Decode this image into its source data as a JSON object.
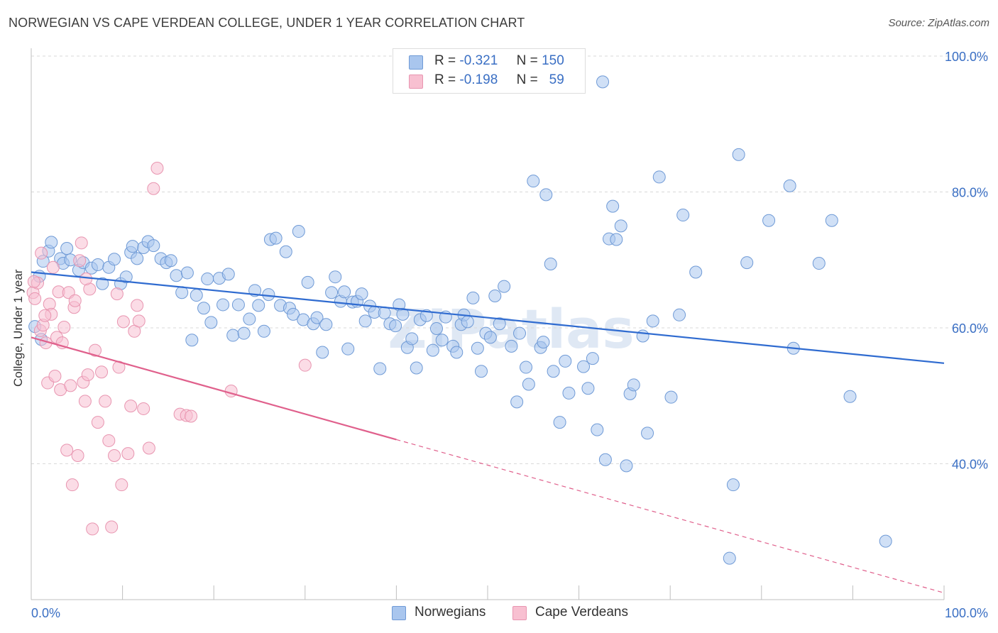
{
  "title": "NORWEGIAN VS CAPE VERDEAN COLLEGE, UNDER 1 YEAR CORRELATION CHART",
  "source": "Source: ZipAtlas.com",
  "watermark": "ZIPatlas",
  "legend": {
    "rows": [
      {
        "r_label": "R =",
        "r_value": "-0.321",
        "n_label": "N =",
        "n_value": "150",
        "color": "#a9c6ee",
        "border": "#6f9ad6"
      },
      {
        "r_label": "R =",
        "r_value": "-0.198",
        "n_label": "N =",
        "n_value": "59",
        "color": "#f8c0d1",
        "border": "#e895b0"
      }
    ]
  },
  "bottom_legend": [
    {
      "label": "Norwegians",
      "color": "#a9c6ee",
      "border": "#6f9ad6"
    },
    {
      "label": "Cape Verdeans",
      "color": "#f8c0d1",
      "border": "#e895b0"
    }
  ],
  "chart_data": {
    "type": "scatter",
    "xlabel": "",
    "ylabel": "College, Under 1 year",
    "xlim": [
      0,
      100
    ],
    "ylim": [
      20,
      100
    ],
    "x_tick_labels": [
      "0.0%",
      "100.0%"
    ],
    "y_tick_labels": [
      "40.0%",
      "60.0%",
      "80.0%",
      "100.0%"
    ],
    "y_ticks": [
      40,
      60,
      80,
      100
    ],
    "grid": "horizontal-dashed",
    "legend_placement": "top-center",
    "series": [
      {
        "name": "Norwegians",
        "color": "#6f9ad6",
        "fill": "#a9c6ee",
        "trend_color": "#2f6bd0",
        "trend": {
          "x0": 0,
          "y0": 68.2,
          "x1": 100,
          "y1": 54.8,
          "dashed_from": 100
        },
        "points": [
          [
            0.4,
            60.2
          ],
          [
            0.9,
            67.6
          ],
          [
            1.1,
            58.3
          ],
          [
            1.3,
            69.8
          ],
          [
            1.9,
            71.3
          ],
          [
            2.2,
            72.6
          ],
          [
            3.2,
            70.2
          ],
          [
            3.5,
            69.5
          ],
          [
            3.9,
            71.7
          ],
          [
            4.3,
            70.0
          ],
          [
            5.2,
            68.5
          ],
          [
            5.7,
            69.6
          ],
          [
            6.6,
            68.8
          ],
          [
            7.3,
            69.3
          ],
          [
            7.8,
            66.5
          ],
          [
            8.5,
            68.9
          ],
          [
            9.1,
            70.1
          ],
          [
            9.8,
            66.5
          ],
          [
            10.4,
            67.5
          ],
          [
            10.9,
            71.1
          ],
          [
            11.1,
            72.0
          ],
          [
            11.6,
            70.2
          ],
          [
            12.3,
            71.8
          ],
          [
            12.8,
            72.7
          ],
          [
            13.4,
            72.1
          ],
          [
            14.2,
            70.2
          ],
          [
            14.8,
            69.6
          ],
          [
            15.3,
            69.9
          ],
          [
            15.9,
            67.7
          ],
          [
            16.5,
            65.2
          ],
          [
            17.1,
            68.1
          ],
          [
            17.6,
            58.2
          ],
          [
            18.1,
            64.8
          ],
          [
            18.9,
            62.9
          ],
          [
            19.3,
            67.2
          ],
          [
            19.7,
            60.8
          ],
          [
            20.6,
            67.3
          ],
          [
            21.0,
            63.4
          ],
          [
            21.6,
            67.9
          ],
          [
            22.1,
            58.9
          ],
          [
            22.7,
            63.4
          ],
          [
            23.3,
            59.2
          ],
          [
            23.9,
            61.3
          ],
          [
            24.5,
            65.5
          ],
          [
            24.9,
            63.3
          ],
          [
            25.5,
            59.5
          ],
          [
            26.0,
            64.9
          ],
          [
            26.2,
            73.0
          ],
          [
            26.8,
            73.2
          ],
          [
            27.3,
            63.3
          ],
          [
            27.9,
            71.2
          ],
          [
            28.3,
            62.9
          ],
          [
            28.7,
            62.0
          ],
          [
            29.3,
            74.2
          ],
          [
            29.8,
            61.2
          ],
          [
            30.3,
            66.7
          ],
          [
            30.9,
            60.6
          ],
          [
            31.3,
            61.5
          ],
          [
            31.9,
            56.4
          ],
          [
            32.3,
            60.5
          ],
          [
            32.9,
            65.2
          ],
          [
            33.3,
            67.5
          ],
          [
            33.9,
            63.9
          ],
          [
            34.3,
            65.3
          ],
          [
            34.7,
            56.9
          ],
          [
            35.2,
            63.8
          ],
          [
            35.7,
            63.9
          ],
          [
            36.2,
            65.0
          ],
          [
            36.6,
            61.0
          ],
          [
            37.1,
            63.2
          ],
          [
            37.6,
            62.3
          ],
          [
            38.2,
            54.0
          ],
          [
            38.7,
            62.2
          ],
          [
            39.3,
            60.6
          ],
          [
            39.9,
            60.3
          ],
          [
            40.3,
            63.4
          ],
          [
            40.7,
            62.0
          ],
          [
            41.2,
            57.1
          ],
          [
            41.7,
            58.4
          ],
          [
            42.2,
            54.1
          ],
          [
            42.6,
            61.2
          ],
          [
            43.3,
            61.8
          ],
          [
            44.0,
            56.7
          ],
          [
            44.4,
            59.9
          ],
          [
            45.0,
            58.2
          ],
          [
            45.4,
            61.6
          ],
          [
            46.2,
            57.3
          ],
          [
            46.6,
            56.4
          ],
          [
            47.1,
            60.5
          ],
          [
            47.4,
            61.9
          ],
          [
            47.8,
            60.9
          ],
          [
            48.4,
            64.4
          ],
          [
            48.9,
            57.0
          ],
          [
            49.3,
            53.6
          ],
          [
            49.8,
            59.2
          ],
          [
            50.3,
            58.6
          ],
          [
            50.8,
            64.7
          ],
          [
            51.3,
            60.6
          ],
          [
            51.8,
            66.1
          ],
          [
            52.6,
            57.3
          ],
          [
            53.2,
            49.1
          ],
          [
            53.5,
            59.2
          ],
          [
            54.2,
            54.2
          ],
          [
            54.5,
            51.7
          ],
          [
            55.0,
            81.6
          ],
          [
            55.8,
            57.1
          ],
          [
            56.1,
            57.9
          ],
          [
            56.4,
            79.6
          ],
          [
            56.9,
            69.4
          ],
          [
            57.2,
            53.6
          ],
          [
            57.9,
            46.1
          ],
          [
            58.5,
            55.1
          ],
          [
            58.9,
            50.4
          ],
          [
            60.5,
            54.3
          ],
          [
            61.0,
            51.1
          ],
          [
            61.5,
            55.5
          ],
          [
            62.0,
            45.0
          ],
          [
            62.9,
            40.6
          ],
          [
            63.3,
            73.1
          ],
          [
            63.7,
            77.9
          ],
          [
            64.1,
            73.0
          ],
          [
            64.6,
            75.0
          ],
          [
            65.2,
            39.7
          ],
          [
            65.6,
            50.3
          ],
          [
            66.0,
            51.6
          ],
          [
            67.0,
            58.8
          ],
          [
            67.5,
            44.5
          ],
          [
            68.1,
            61.0
          ],
          [
            68.8,
            82.2
          ],
          [
            70.1,
            49.8
          ],
          [
            71.0,
            61.9
          ],
          [
            71.4,
            76.6
          ],
          [
            72.8,
            68.2
          ],
          [
            76.5,
            26.1
          ],
          [
            76.9,
            36.9
          ],
          [
            77.5,
            85.5
          ],
          [
            78.4,
            69.6
          ],
          [
            80.8,
            75.8
          ],
          [
            83.1,
            80.9
          ],
          [
            83.5,
            57.0
          ],
          [
            86.3,
            69.5
          ],
          [
            87.7,
            75.8
          ],
          [
            89.7,
            49.9
          ],
          [
            93.6,
            28.6
          ],
          [
            62.6,
            96.2
          ]
        ]
      },
      {
        "name": "Cape Verdeans",
        "color": "#e895b0",
        "fill": "#f8c0d1",
        "trend_color": "#e0608c",
        "trend": {
          "x0": 0,
          "y0": 58.6,
          "x1": 100,
          "y1": 21.0,
          "dashed_from": 40
        },
        "points": [
          [
            0.2,
            65.2
          ],
          [
            0.4,
            64.3
          ],
          [
            0.7,
            66.6
          ],
          [
            1.0,
            59.6
          ],
          [
            1.1,
            71.0
          ],
          [
            1.3,
            60.4
          ],
          [
            1.6,
            57.8
          ],
          [
            1.8,
            51.9
          ],
          [
            2.0,
            63.5
          ],
          [
            2.2,
            62.0
          ],
          [
            2.4,
            68.9
          ],
          [
            2.6,
            52.9
          ],
          [
            2.8,
            58.6
          ],
          [
            3.0,
            65.3
          ],
          [
            3.2,
            50.9
          ],
          [
            3.4,
            57.8
          ],
          [
            3.6,
            60.1
          ],
          [
            3.9,
            42.0
          ],
          [
            4.1,
            65.2
          ],
          [
            4.3,
            51.5
          ],
          [
            4.5,
            36.9
          ],
          [
            4.7,
            63.0
          ],
          [
            4.8,
            64.0
          ],
          [
            5.1,
            41.2
          ],
          [
            5.3,
            69.9
          ],
          [
            5.5,
            72.5
          ],
          [
            5.7,
            52.0
          ],
          [
            5.9,
            49.2
          ],
          [
            6.2,
            53.1
          ],
          [
            6.4,
            65.7
          ],
          [
            6.7,
            30.4
          ],
          [
            7.0,
            56.7
          ],
          [
            7.3,
            46.1
          ],
          [
            7.7,
            53.5
          ],
          [
            8.1,
            49.2
          ],
          [
            8.5,
            43.4
          ],
          [
            8.8,
            30.7
          ],
          [
            9.1,
            41.2
          ],
          [
            9.4,
            65.0
          ],
          [
            9.6,
            54.2
          ],
          [
            9.9,
            36.9
          ],
          [
            10.1,
            60.9
          ],
          [
            10.6,
            41.5
          ],
          [
            10.9,
            48.5
          ],
          [
            11.3,
            59.5
          ],
          [
            11.6,
            63.3
          ],
          [
            11.8,
            61.0
          ],
          [
            12.3,
            48.1
          ],
          [
            12.9,
            42.3
          ],
          [
            13.4,
            80.5
          ],
          [
            13.8,
            83.5
          ],
          [
            16.3,
            47.3
          ],
          [
            17.0,
            47.1
          ],
          [
            17.5,
            47.0
          ],
          [
            21.9,
            50.7
          ],
          [
            30.0,
            54.5
          ],
          [
            0.3,
            66.8
          ],
          [
            1.5,
            61.8
          ],
          [
            6.0,
            67.2
          ]
        ]
      }
    ]
  }
}
